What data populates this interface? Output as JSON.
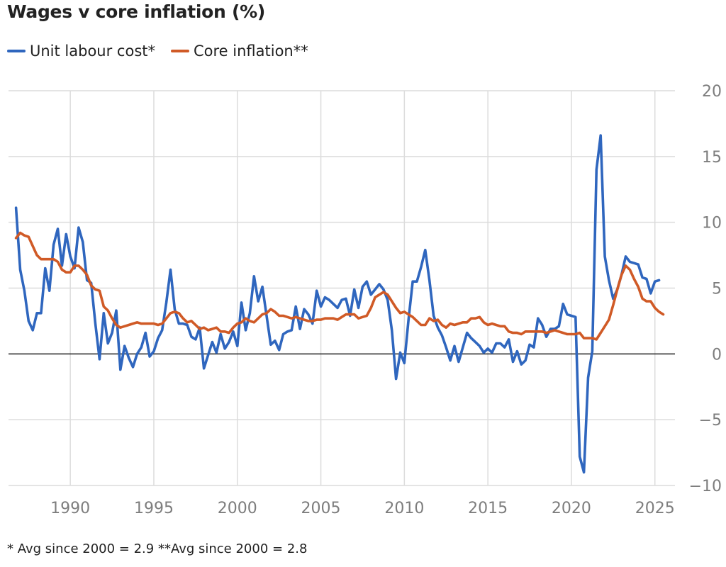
{
  "title": "Wages v core inflation (%)",
  "footnote": "* Avg since 2000 = 2.9 **Avg since 2000 = 2.8",
  "chart_data": {
    "type": "line",
    "title": "Wages v core inflation (%)",
    "xlim": [
      1986.3,
      2026.2
    ],
    "ylim": [
      -10,
      20
    ],
    "y_ticks": [
      20,
      15,
      10,
      5,
      0,
      -5,
      -10
    ],
    "x_ticks": [
      1990,
      1995,
      2000,
      2005,
      2010,
      2015,
      2020,
      2025
    ],
    "legend": "top-left",
    "grid": "vertical and horizontal",
    "series": [
      {
        "name": "Unit labour cost*",
        "color": "#2f66be",
        "points": [
          [
            1986.75,
            11.1
          ],
          [
            1987.0,
            6.4
          ],
          [
            1987.25,
            4.8
          ],
          [
            1987.5,
            2.5
          ],
          [
            1987.75,
            1.8
          ],
          [
            1988.0,
            3.1
          ],
          [
            1988.25,
            3.1
          ],
          [
            1988.5,
            6.5
          ],
          [
            1988.75,
            4.8
          ],
          [
            1989.0,
            8.3
          ],
          [
            1989.25,
            9.5
          ],
          [
            1989.5,
            6.7
          ],
          [
            1989.75,
            9.1
          ],
          [
            1990.0,
            7.4
          ],
          [
            1990.25,
            6.5
          ],
          [
            1990.5,
            9.6
          ],
          [
            1990.75,
            8.5
          ],
          [
            1991.0,
            5.6
          ],
          [
            1991.25,
            5.4
          ],
          [
            1991.5,
            2.3
          ],
          [
            1991.75,
            -0.4
          ],
          [
            1992.0,
            3.1
          ],
          [
            1992.25,
            0.8
          ],
          [
            1992.5,
            1.6
          ],
          [
            1992.75,
            3.3
          ],
          [
            1993.0,
            -1.2
          ],
          [
            1993.25,
            0.6
          ],
          [
            1993.5,
            -0.3
          ],
          [
            1993.75,
            -1.0
          ],
          [
            1994.0,
            0.0
          ],
          [
            1994.25,
            0.5
          ],
          [
            1994.5,
            1.6
          ],
          [
            1994.75,
            -0.2
          ],
          [
            1995.0,
            0.2
          ],
          [
            1995.25,
            1.2
          ],
          [
            1995.5,
            1.8
          ],
          [
            1995.75,
            3.9
          ],
          [
            1996.0,
            6.4
          ],
          [
            1996.25,
            3.4
          ],
          [
            1996.5,
            2.3
          ],
          [
            1996.75,
            2.3
          ],
          [
            1997.0,
            2.2
          ],
          [
            1997.25,
            1.3
          ],
          [
            1997.5,
            1.1
          ],
          [
            1997.75,
            2.0
          ],
          [
            1998.0,
            -1.1
          ],
          [
            1998.25,
            -0.1
          ],
          [
            1998.5,
            0.9
          ],
          [
            1998.75,
            0.1
          ],
          [
            1999.0,
            1.5
          ],
          [
            1999.25,
            0.4
          ],
          [
            1999.5,
            0.9
          ],
          [
            1999.75,
            1.7
          ],
          [
            2000.0,
            0.6
          ],
          [
            2000.25,
            3.9
          ],
          [
            2000.5,
            1.8
          ],
          [
            2000.75,
            3.1
          ],
          [
            2001.0,
            5.9
          ],
          [
            2001.25,
            4.0
          ],
          [
            2001.5,
            5.1
          ],
          [
            2001.75,
            2.9
          ],
          [
            2002.0,
            0.7
          ],
          [
            2002.25,
            1.0
          ],
          [
            2002.5,
            0.3
          ],
          [
            2002.75,
            1.5
          ],
          [
            2003.0,
            1.7
          ],
          [
            2003.25,
            1.8
          ],
          [
            2003.5,
            3.6
          ],
          [
            2003.75,
            1.9
          ],
          [
            2004.0,
            3.4
          ],
          [
            2004.25,
            3.0
          ],
          [
            2004.5,
            2.3
          ],
          [
            2004.75,
            4.8
          ],
          [
            2005.0,
            3.6
          ],
          [
            2005.25,
            4.3
          ],
          [
            2005.5,
            4.1
          ],
          [
            2005.75,
            3.8
          ],
          [
            2006.0,
            3.5
          ],
          [
            2006.25,
            4.1
          ],
          [
            2006.5,
            4.2
          ],
          [
            2006.75,
            2.9
          ],
          [
            2007.0,
            4.9
          ],
          [
            2007.25,
            3.5
          ],
          [
            2007.5,
            5.1
          ],
          [
            2007.75,
            5.5
          ],
          [
            2008.0,
            4.5
          ],
          [
            2008.25,
            4.9
          ],
          [
            2008.5,
            5.3
          ],
          [
            2008.75,
            4.9
          ],
          [
            2009.0,
            4.1
          ],
          [
            2009.25,
            1.8
          ],
          [
            2009.5,
            -1.9
          ],
          [
            2009.75,
            0.1
          ],
          [
            2010.0,
            -0.7
          ],
          [
            2010.25,
            2.6
          ],
          [
            2010.5,
            5.5
          ],
          [
            2010.75,
            5.5
          ],
          [
            2011.0,
            6.6
          ],
          [
            2011.25,
            7.9
          ],
          [
            2011.5,
            5.6
          ],
          [
            2011.75,
            2.9
          ],
          [
            2012.0,
            2.0
          ],
          [
            2012.25,
            1.4
          ],
          [
            2012.5,
            0.5
          ],
          [
            2012.75,
            -0.5
          ],
          [
            2013.0,
            0.6
          ],
          [
            2013.25,
            -0.6
          ],
          [
            2013.5,
            0.5
          ],
          [
            2013.75,
            1.6
          ],
          [
            2014.0,
            1.2
          ],
          [
            2014.25,
            0.9
          ],
          [
            2014.5,
            0.6
          ],
          [
            2014.75,
            0.1
          ],
          [
            2015.0,
            0.4
          ],
          [
            2015.25,
            0.1
          ],
          [
            2015.5,
            0.8
          ],
          [
            2015.75,
            0.8
          ],
          [
            2016.0,
            0.5
          ],
          [
            2016.25,
            1.1
          ],
          [
            2016.5,
            -0.6
          ],
          [
            2016.75,
            0.2
          ],
          [
            2017.0,
            -0.8
          ],
          [
            2017.25,
            -0.5
          ],
          [
            2017.5,
            0.7
          ],
          [
            2017.75,
            0.5
          ],
          [
            2018.0,
            2.7
          ],
          [
            2018.25,
            2.2
          ],
          [
            2018.5,
            1.3
          ],
          [
            2018.75,
            1.9
          ],
          [
            2019.0,
            1.9
          ],
          [
            2019.25,
            2.1
          ],
          [
            2019.5,
            3.8
          ],
          [
            2019.75,
            3.0
          ],
          [
            2020.0,
            2.9
          ],
          [
            2020.25,
            2.8
          ],
          [
            2020.5,
            -7.8
          ],
          [
            2020.75,
            -9.0
          ],
          [
            2021.0,
            -1.8
          ],
          [
            2021.25,
            0.2
          ],
          [
            2021.5,
            14.0
          ],
          [
            2021.75,
            16.6
          ],
          [
            2022.0,
            7.4
          ],
          [
            2022.25,
            5.6
          ],
          [
            2022.5,
            4.2
          ],
          [
            2022.75,
            4.9
          ],
          [
            2023.0,
            6.0
          ],
          [
            2023.25,
            7.4
          ],
          [
            2023.5,
            7.0
          ],
          [
            2023.75,
            6.9
          ],
          [
            2024.0,
            6.8
          ],
          [
            2024.25,
            5.8
          ],
          [
            2024.5,
            5.7
          ],
          [
            2024.75,
            4.6
          ],
          [
            2025.0,
            5.5
          ],
          [
            2025.25,
            5.6
          ]
        ]
      },
      {
        "name": "Core inflation**",
        "color": "#d05a26",
        "points": [
          [
            1986.75,
            8.8
          ],
          [
            1987.0,
            9.2
          ],
          [
            1987.25,
            9.0
          ],
          [
            1987.5,
            8.9
          ],
          [
            1987.75,
            8.2
          ],
          [
            1988.0,
            7.5
          ],
          [
            1988.25,
            7.2
          ],
          [
            1988.5,
            7.2
          ],
          [
            1988.75,
            7.2
          ],
          [
            1989.0,
            7.2
          ],
          [
            1989.25,
            7.0
          ],
          [
            1989.5,
            6.4
          ],
          [
            1989.75,
            6.2
          ],
          [
            1990.0,
            6.2
          ],
          [
            1990.25,
            6.7
          ],
          [
            1990.5,
            6.7
          ],
          [
            1990.75,
            6.4
          ],
          [
            1991.0,
            6.0
          ],
          [
            1991.25,
            5.2
          ],
          [
            1991.5,
            4.9
          ],
          [
            1991.75,
            4.8
          ],
          [
            1992.0,
            3.6
          ],
          [
            1992.25,
            3.3
          ],
          [
            1992.5,
            2.7
          ],
          [
            1992.75,
            2.2
          ],
          [
            1993.0,
            2.0
          ],
          [
            1993.25,
            2.1
          ],
          [
            1993.5,
            2.2
          ],
          [
            1993.75,
            2.3
          ],
          [
            1994.0,
            2.4
          ],
          [
            1994.25,
            2.3
          ],
          [
            1994.5,
            2.3
          ],
          [
            1994.75,
            2.3
          ],
          [
            1995.0,
            2.3
          ],
          [
            1995.25,
            2.2
          ],
          [
            1995.5,
            2.3
          ],
          [
            1995.75,
            2.7
          ],
          [
            1996.0,
            3.1
          ],
          [
            1996.25,
            3.2
          ],
          [
            1996.5,
            3.1
          ],
          [
            1996.75,
            2.7
          ],
          [
            1997.0,
            2.4
          ],
          [
            1997.25,
            2.5
          ],
          [
            1997.5,
            2.2
          ],
          [
            1997.75,
            1.9
          ],
          [
            1998.0,
            2.0
          ],
          [
            1998.25,
            1.8
          ],
          [
            1998.5,
            1.9
          ],
          [
            1998.75,
            2.0
          ],
          [
            1999.0,
            1.7
          ],
          [
            1999.25,
            1.7
          ],
          [
            1999.5,
            1.6
          ],
          [
            1999.75,
            2.0
          ],
          [
            2000.0,
            2.3
          ],
          [
            2000.25,
            2.4
          ],
          [
            2000.5,
            2.7
          ],
          [
            2000.75,
            2.5
          ],
          [
            2001.0,
            2.4
          ],
          [
            2001.25,
            2.7
          ],
          [
            2001.5,
            3.0
          ],
          [
            2001.75,
            3.1
          ],
          [
            2002.0,
            3.4
          ],
          [
            2002.25,
            3.2
          ],
          [
            2002.5,
            2.9
          ],
          [
            2002.75,
            2.9
          ],
          [
            2003.0,
            2.8
          ],
          [
            2003.25,
            2.7
          ],
          [
            2003.5,
            2.8
          ],
          [
            2003.75,
            2.7
          ],
          [
            2004.0,
            2.6
          ],
          [
            2004.25,
            2.5
          ],
          [
            2004.5,
            2.5
          ],
          [
            2004.75,
            2.6
          ],
          [
            2005.0,
            2.6
          ],
          [
            2005.25,
            2.7
          ],
          [
            2005.5,
            2.7
          ],
          [
            2005.75,
            2.7
          ],
          [
            2006.0,
            2.6
          ],
          [
            2006.25,
            2.8
          ],
          [
            2006.5,
            3.0
          ],
          [
            2006.75,
            3.0
          ],
          [
            2007.0,
            3.0
          ],
          [
            2007.25,
            2.7
          ],
          [
            2007.5,
            2.8
          ],
          [
            2007.75,
            2.9
          ],
          [
            2008.0,
            3.5
          ],
          [
            2008.25,
            4.3
          ],
          [
            2008.5,
            4.5
          ],
          [
            2008.75,
            4.7
          ],
          [
            2009.0,
            4.5
          ],
          [
            2009.25,
            4.0
          ],
          [
            2009.5,
            3.5
          ],
          [
            2009.75,
            3.1
          ],
          [
            2010.0,
            3.2
          ],
          [
            2010.25,
            3.0
          ],
          [
            2010.5,
            2.8
          ],
          [
            2010.75,
            2.5
          ],
          [
            2011.0,
            2.2
          ],
          [
            2011.25,
            2.2
          ],
          [
            2011.5,
            2.7
          ],
          [
            2011.75,
            2.5
          ],
          [
            2012.0,
            2.6
          ],
          [
            2012.25,
            2.2
          ],
          [
            2012.5,
            2.0
          ],
          [
            2012.75,
            2.3
          ],
          [
            2013.0,
            2.2
          ],
          [
            2013.25,
            2.3
          ],
          [
            2013.5,
            2.4
          ],
          [
            2013.75,
            2.4
          ],
          [
            2014.0,
            2.7
          ],
          [
            2014.25,
            2.7
          ],
          [
            2014.5,
            2.8
          ],
          [
            2014.75,
            2.4
          ],
          [
            2015.0,
            2.2
          ],
          [
            2015.25,
            2.3
          ],
          [
            2015.5,
            2.2
          ],
          [
            2015.75,
            2.1
          ],
          [
            2016.0,
            2.1
          ],
          [
            2016.25,
            1.7
          ],
          [
            2016.5,
            1.6
          ],
          [
            2016.75,
            1.6
          ],
          [
            2017.0,
            1.5
          ],
          [
            2017.25,
            1.7
          ],
          [
            2017.5,
            1.7
          ],
          [
            2017.75,
            1.7
          ],
          [
            2018.0,
            1.7
          ],
          [
            2018.25,
            1.7
          ],
          [
            2018.5,
            1.6
          ],
          [
            2018.75,
            1.7
          ],
          [
            2019.0,
            1.8
          ],
          [
            2019.25,
            1.7
          ],
          [
            2019.5,
            1.6
          ],
          [
            2019.75,
            1.5
          ],
          [
            2020.0,
            1.5
          ],
          [
            2020.25,
            1.5
          ],
          [
            2020.5,
            1.6
          ],
          [
            2020.75,
            1.2
          ],
          [
            2021.0,
            1.2
          ],
          [
            2021.25,
            1.2
          ],
          [
            2021.5,
            1.1
          ],
          [
            2021.75,
            1.6
          ],
          [
            2022.0,
            2.1
          ],
          [
            2022.25,
            2.6
          ],
          [
            2022.5,
            3.7
          ],
          [
            2022.75,
            4.9
          ],
          [
            2023.0,
            6.0
          ],
          [
            2023.25,
            6.7
          ],
          [
            2023.5,
            6.4
          ],
          [
            2023.75,
            5.7
          ],
          [
            2024.0,
            5.1
          ],
          [
            2024.25,
            4.2
          ],
          [
            2024.5,
            4.0
          ],
          [
            2024.75,
            4.0
          ],
          [
            2025.0,
            3.5
          ],
          [
            2025.25,
            3.2
          ],
          [
            2025.5,
            3.0
          ]
        ]
      }
    ]
  }
}
